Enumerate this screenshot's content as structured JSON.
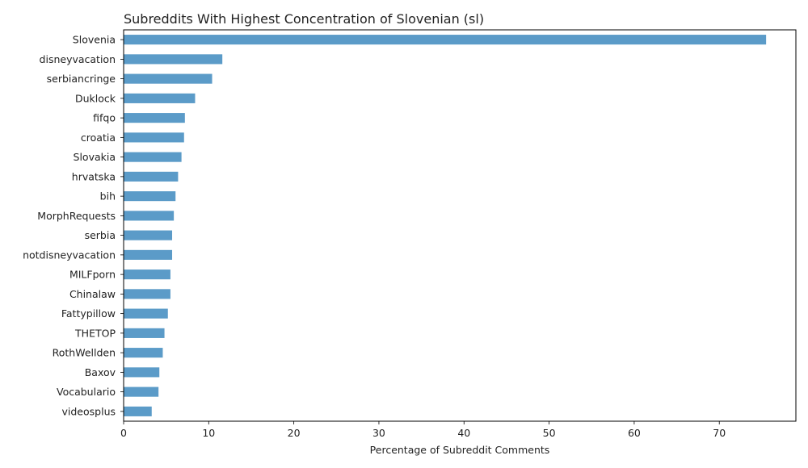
{
  "chart_data": {
    "type": "bar",
    "orientation": "horizontal",
    "title": "Subreddits With Highest Concentration of Slovenian (sl)",
    "xlabel": "Percentage of Subreddit Comments",
    "ylabel": "",
    "xlim": [
      0,
      79
    ],
    "xticks": [
      0,
      10,
      20,
      30,
      40,
      50,
      60,
      70
    ],
    "grid": false,
    "bar_color": "#5b9bc8",
    "categories": [
      "Slovenia",
      "disneyvacation",
      "serbiancringe",
      "Duklock",
      "fifqo",
      "croatia",
      "Slovakia",
      "hrvatska",
      "bih",
      "MorphRequests",
      "serbia",
      "notdisneyvacation",
      "MILFporn",
      "Chinalaw",
      "Fattypillow",
      "THETOP",
      "RothWellden",
      "Baxov",
      "Vocabulario",
      "videosplus"
    ],
    "values": [
      75.5,
      11.6,
      10.4,
      8.4,
      7.2,
      7.1,
      6.8,
      6.4,
      6.1,
      5.9,
      5.7,
      5.7,
      5.5,
      5.5,
      5.2,
      4.8,
      4.6,
      4.2,
      4.1,
      3.3
    ]
  }
}
